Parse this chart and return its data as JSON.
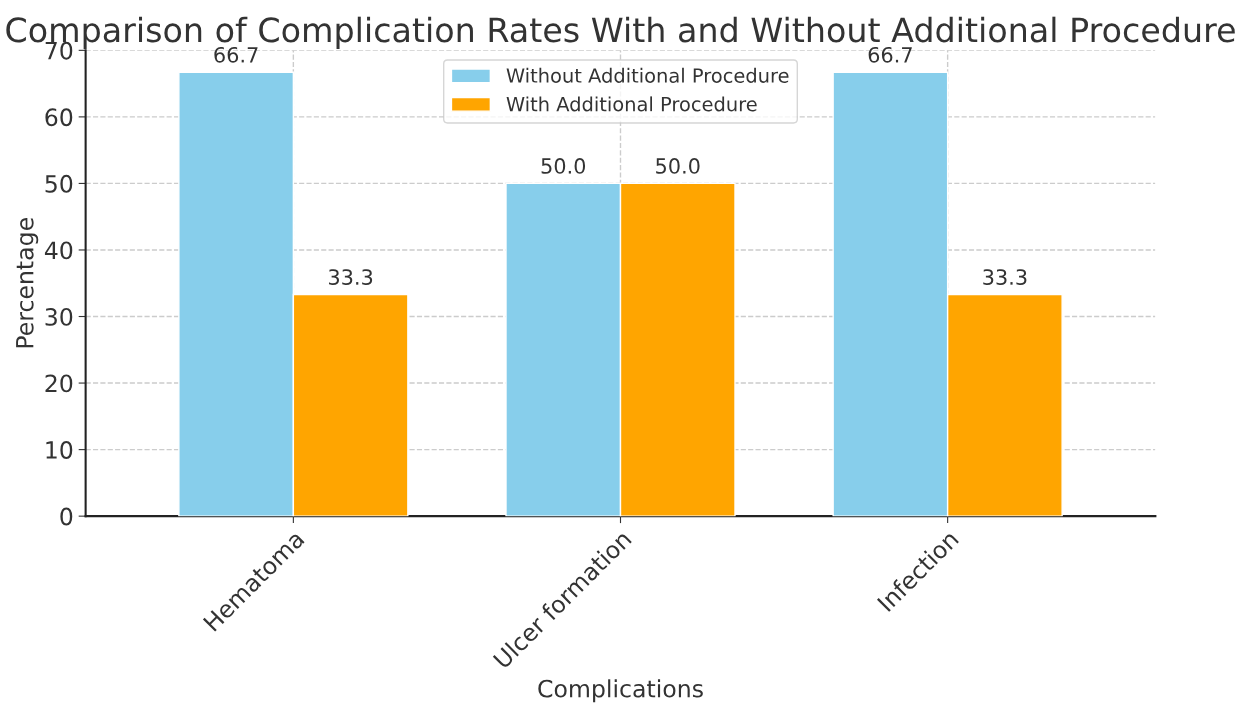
{
  "chart_data": {
    "type": "bar",
    "title": "Comparison of Complication Rates With and Without Additional Procedure",
    "xlabel": "Complications",
    "ylabel": "Percentage",
    "categories": [
      "Hematoma",
      "Ulcer formation",
      "Infection"
    ],
    "series": [
      {
        "name": "Without Additional Procedure",
        "color": "#87ceeb",
        "values": [
          66.7,
          50.0,
          66.7
        ],
        "value_labels": [
          "66.7",
          "50.0",
          "66.7"
        ]
      },
      {
        "name": "With Additional Procedure",
        "color": "#ffa500",
        "values": [
          33.3,
          50.0,
          33.3
        ],
        "value_labels": [
          "33.3",
          "50.0",
          "33.3"
        ]
      }
    ],
    "ylim": [
      0,
      70
    ],
    "yticks": [
      0,
      10,
      20,
      30,
      40,
      50,
      60,
      70
    ],
    "grid": true,
    "legend": "top"
  }
}
